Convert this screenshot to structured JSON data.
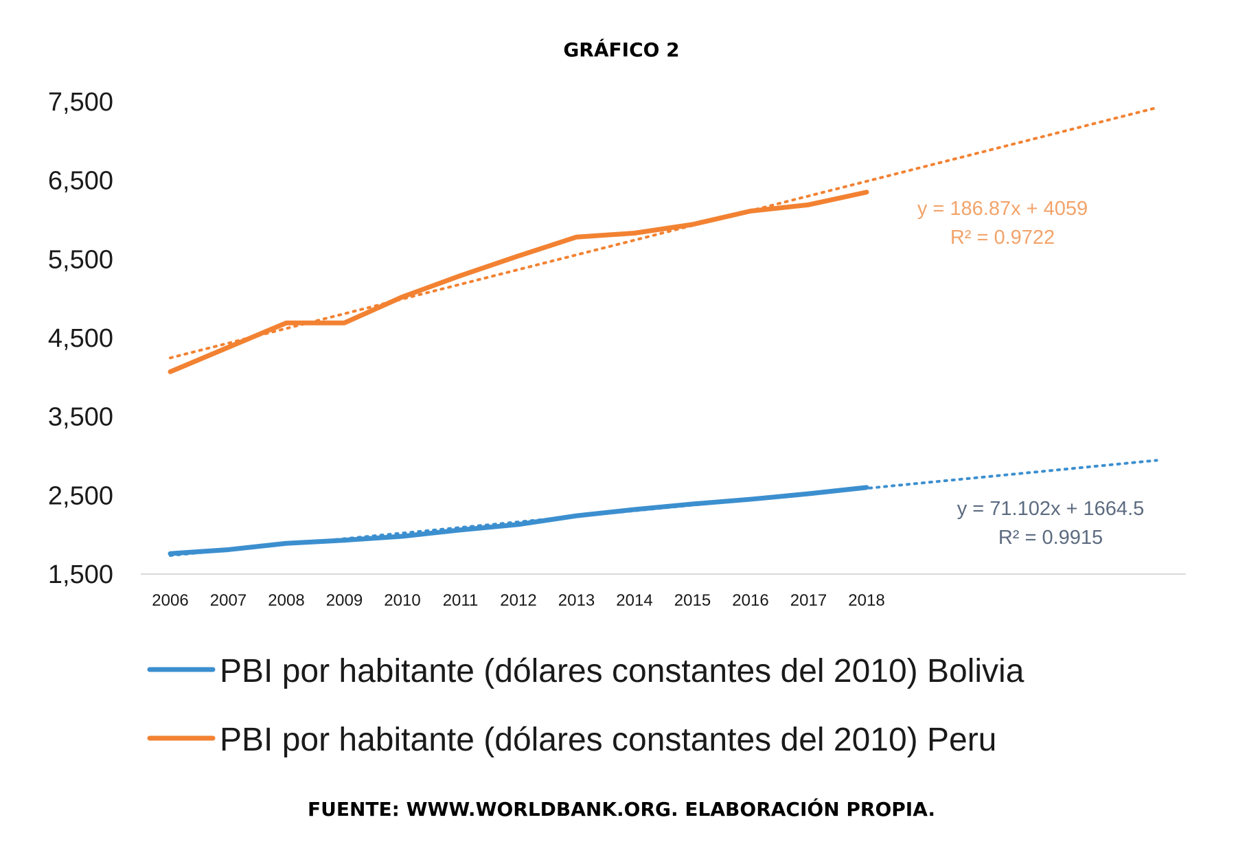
{
  "chart_data": {
    "type": "line",
    "title": "GRÁFICO 2",
    "source": "FUENTE: WWW.WORLDBANK.ORG. ELABORACIÓN PROPIA.",
    "categories": [
      "2006",
      "2007",
      "2008",
      "2009",
      "2010",
      "2011",
      "2012",
      "2013",
      "2014",
      "2015",
      "2016",
      "2017",
      "2018"
    ],
    "ylim": [
      1500,
      7500
    ],
    "yticks": [
      1500,
      2500,
      3500,
      4500,
      5500,
      6500,
      7500
    ],
    "ytick_labels": [
      "1,500",
      "2,500",
      "3,500",
      "4,500",
      "5,500",
      "6,500",
      "7,500"
    ],
    "grid": false,
    "legend_position": "bottom",
    "series": [
      {
        "name": "PBI por habitante (dólares constantes del 2010) Bolivia",
        "color": "#3C8FCF",
        "values": [
          1760,
          1810,
          1890,
          1930,
          1980,
          2060,
          2130,
          2240,
          2320,
          2390,
          2450,
          2520,
          2600
        ],
        "trend": {
          "slope": 71.102,
          "intercept": 1664.5,
          "extend_to_index": 17,
          "equation": "y = 71.102x + 1664.5",
          "r2": "R² = 0.9915",
          "label_color": "#5C6B80"
        }
      },
      {
        "name": "PBI por habitante (dólares constantes del 2010) Peru",
        "color": "#F28232",
        "values": [
          4070,
          4380,
          4690,
          4690,
          5020,
          5290,
          5540,
          5780,
          5830,
          5940,
          6110,
          6190,
          6350
        ],
        "trend": {
          "slope": 186.87,
          "intercept": 4059,
          "extend_to_index": 17,
          "equation": "y = 186.87x + 4059",
          "r2": "R² = 0.9722",
          "label_color": "#F2A36A"
        }
      }
    ]
  }
}
